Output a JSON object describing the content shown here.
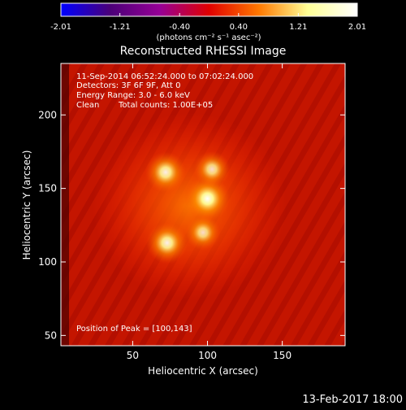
{
  "chart_data": {
    "type": "heatmap",
    "title": "Reconstructed RHESSI Image",
    "xlabel": "Heliocentric X (arcsec)",
    "ylabel": "Heliocentric Y (arcsec)",
    "xlim": [
      2,
      192
    ],
    "ylim": [
      43,
      235
    ],
    "x_ticks": [
      "50",
      "100",
      "150"
    ],
    "x_tick_values": [
      50,
      100,
      150
    ],
    "y_ticks": [
      "50",
      "100",
      "150",
      "200"
    ],
    "y_tick_values": [
      50,
      100,
      150,
      200
    ],
    "colorbar": {
      "ticks": [
        "-2.01",
        "-1.21",
        "-0.40",
        "0.40",
        "1.21",
        "2.01"
      ],
      "tick_values": [
        -2.01,
        -1.21,
        -0.4,
        0.4,
        1.21,
        2.01
      ],
      "units": "(photons cm⁻² s⁻¹ asec⁻²)",
      "colormap": [
        "#0000ff",
        "#4b0078",
        "#960096",
        "#e00000",
        "#ff7800",
        "#ffff96",
        "#ffffff"
      ]
    },
    "annotations": {
      "line1": "11-Sep-2014 06:52:24.000 to 07:02:24.000",
      "line2": "Detectors: 3F 6F 9F, Att 0",
      "line3": "Energy Range: 3.0 - 6.0 keV",
      "line4_a": "Clean",
      "line4_b": "Total counts: 1.00E+05",
      "peak": "Position of Peak = [100,143]"
    },
    "sources": [
      {
        "x": 100,
        "y": 143,
        "relative_intensity": 1.0
      },
      {
        "x": 72,
        "y": 161,
        "relative_intensity": 0.8
      },
      {
        "x": 73,
        "y": 113,
        "relative_intensity": 0.82
      },
      {
        "x": 103,
        "y": 163,
        "relative_intensity": 0.6
      },
      {
        "x": 97,
        "y": 120,
        "relative_intensity": 0.55
      }
    ]
  },
  "footer": {
    "timestamp": "13-Feb-2017 18:00"
  }
}
